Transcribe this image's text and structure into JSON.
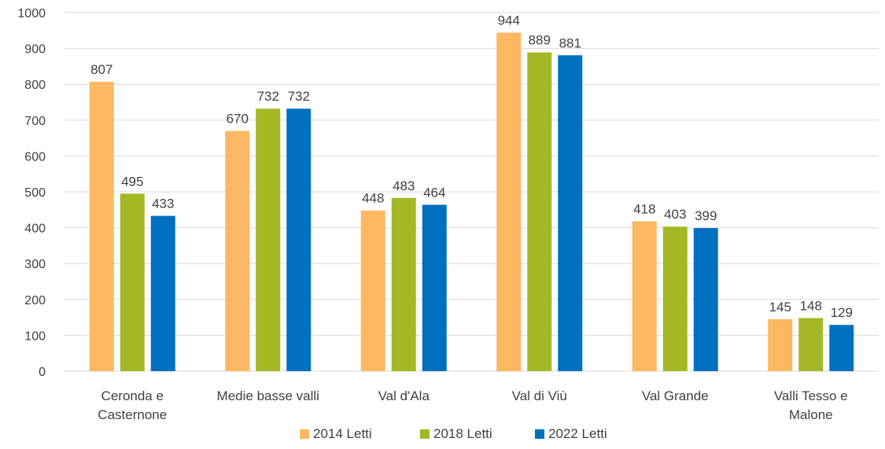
{
  "chart_data": {
    "type": "bar",
    "title": "",
    "xlabel": "",
    "ylabel": "",
    "ylim": [
      0,
      1000
    ],
    "yticks": [
      0,
      100,
      200,
      300,
      400,
      500,
      600,
      700,
      800,
      900,
      1000
    ],
    "grid": true,
    "legend_position": "bottom",
    "categories": [
      [
        "Ceronda e",
        "Casternone"
      ],
      [
        "Medie basse valli"
      ],
      [
        "Val d'Ala"
      ],
      [
        "Val di Viù"
      ],
      [
        "Val Grande"
      ],
      [
        "Valli Tesso e",
        "Malone"
      ]
    ],
    "series": [
      {
        "name": "2014 Letti",
        "color": "#FDB863",
        "values": [
          807,
          670,
          448,
          944,
          418,
          145
        ]
      },
      {
        "name": "2018 Letti",
        "color": "#A4B825",
        "values": [
          495,
          732,
          483,
          889,
          403,
          148
        ]
      },
      {
        "name": "2022 Letti",
        "color": "#0070C0",
        "values": [
          433,
          732,
          464,
          881,
          399,
          129
        ]
      }
    ]
  }
}
